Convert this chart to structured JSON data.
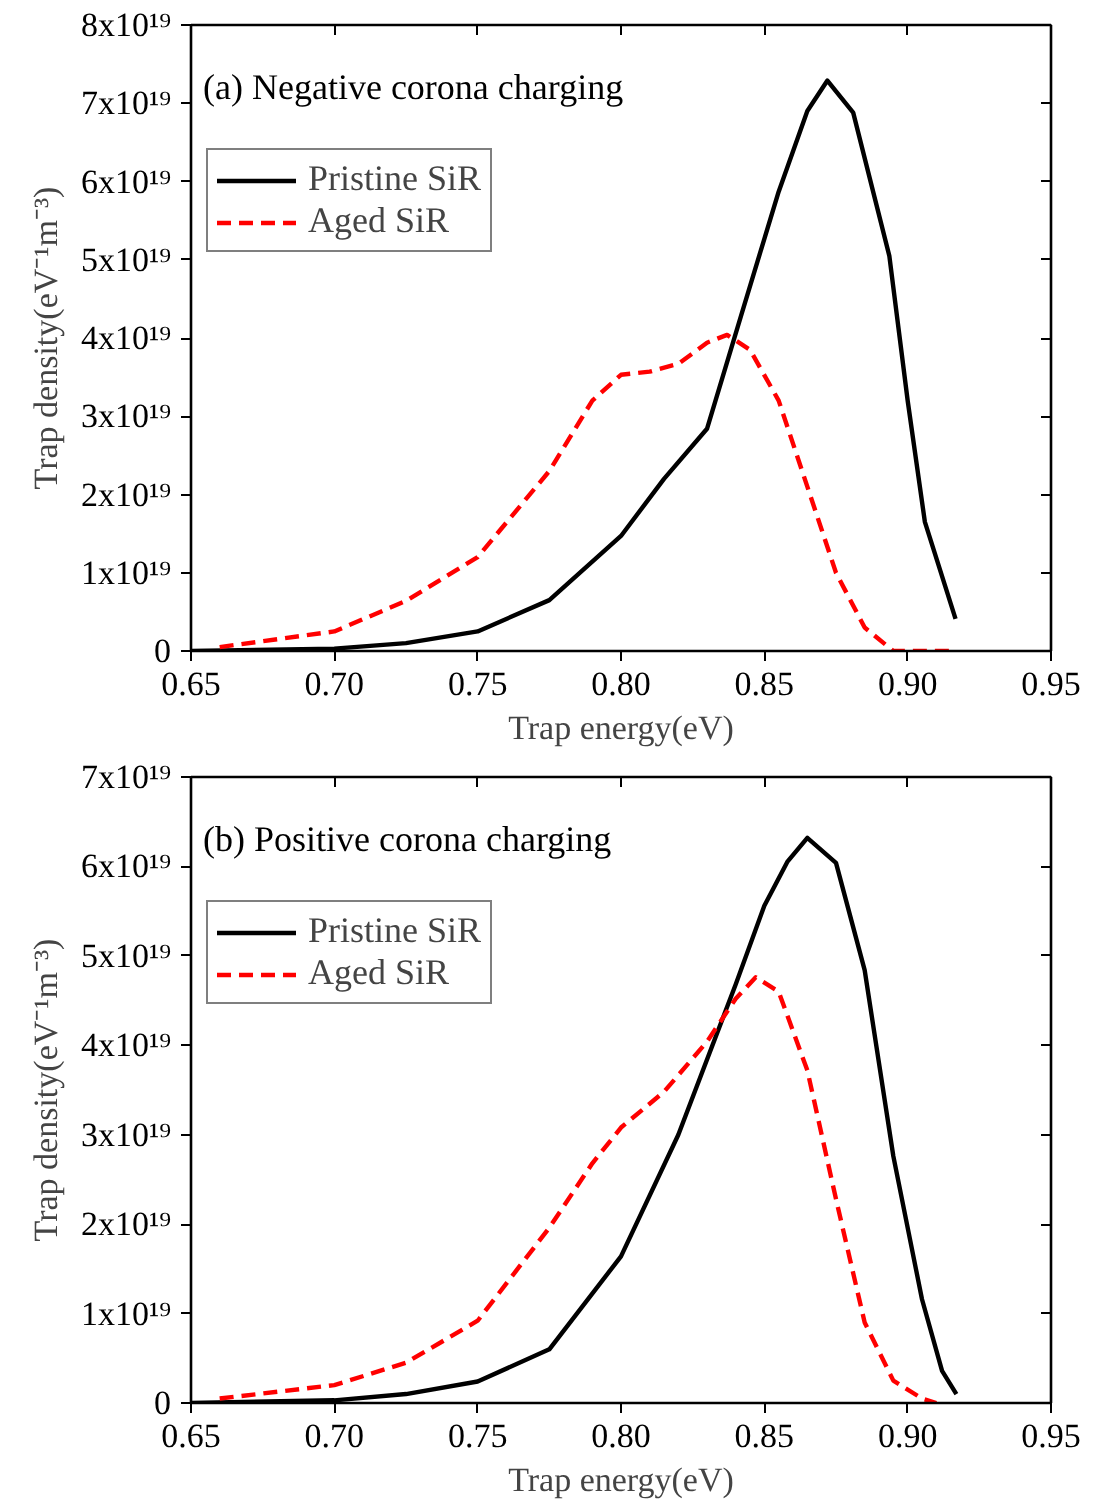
{
  "chart_data": [
    {
      "type": "line",
      "title": "(a) Negative corona charging",
      "xlabel": "Trap energy(eV)",
      "ylabel": "Trap density(eV⁻¹m⁻³)",
      "xlim": [
        0.65,
        0.95
      ],
      "xticks": [
        {
          "value": 0.65,
          "label": "0.65"
        },
        {
          "value": 0.7,
          "label": "0.70"
        },
        {
          "value": 0.75,
          "label": "0.75"
        },
        {
          "value": 0.8,
          "label": "0.80"
        },
        {
          "value": 0.85,
          "label": "0.85"
        },
        {
          "value": 0.9,
          "label": "0.90"
        },
        {
          "value": 0.95,
          "label": "0.95"
        }
      ],
      "ylim": [
        0,
        8e+19
      ],
      "yticks": [
        0,
        {
          "value": 1e+19,
          "label": "1x10¹⁹"
        },
        {
          "value": 2e+19,
          "label": "2x10¹⁹"
        },
        {
          "value": 3e+19,
          "label": "3x10¹⁹"
        },
        {
          "value": 4e+19,
          "label": "4x10¹⁹"
        },
        {
          "value": 5e+19,
          "label": "5x10¹⁹"
        },
        {
          "value": 6e+19,
          "label": "6x10¹⁹"
        },
        {
          "value": 7e+19,
          "label": "7x10¹⁹"
        },
        {
          "value": 8e+19,
          "label": "8x10¹⁹"
        }
      ],
      "grid": false,
      "legend": "top left",
      "series": [
        {
          "name": "Pristine SiR",
          "color": "#000000",
          "line_style": "solid",
          "x": [
            0.65,
            0.7,
            0.725,
            0.75,
            0.775,
            0.8,
            0.815,
            0.83,
            0.842,
            0.855,
            0.865,
            0.872,
            0.881,
            0.8936,
            0.9,
            0.906,
            0.9167
          ],
          "values": [
            0.0,
            3e+17,
            1e+18,
            2.5e+18,
            6.5e+18,
            1.47e+19,
            2.2e+19,
            2.84e+19,
            4.3e+19,
            5.87e+19,
            6.9e+19,
            7.29e+19,
            6.88e+19,
            5.05e+19,
            3.2e+19,
            1.65e+19,
            4.1e+18
          ]
        },
        {
          "name": "Aged SiR",
          "color": "#ff0000",
          "line_style": "dashed",
          "x": [
            0.66,
            0.7,
            0.725,
            0.75,
            0.775,
            0.79,
            0.8,
            0.81,
            0.82,
            0.83,
            0.837,
            0.845,
            0.855,
            0.865,
            0.875,
            0.885,
            0.895,
            0.9,
            0.915
          ],
          "values": [
            5e+17,
            2.5e+18,
            6.4e+18,
            1.2e+19,
            2.3e+19,
            3.2e+19,
            3.53e+19,
            3.57e+19,
            3.67e+19,
            3.94e+19,
            4.04e+19,
            3.85e+19,
            3.2e+19,
            2.1e+19,
            1e+19,
            3e+18,
            0.0,
            0.0,
            0.0
          ]
        }
      ]
    },
    {
      "type": "line",
      "title": "(b) Positive corona charging",
      "xlabel": "Trap energy(eV)",
      "ylabel": "Trap density(eV⁻¹m⁻³)",
      "xlim": [
        0.65,
        0.95
      ],
      "xticks": [
        {
          "value": 0.65,
          "label": "0.65"
        },
        {
          "value": 0.7,
          "label": "0.70"
        },
        {
          "value": 0.75,
          "label": "0.75"
        },
        {
          "value": 0.8,
          "label": "0.80"
        },
        {
          "value": 0.85,
          "label": "0.85"
        },
        {
          "value": 0.9,
          "label": "0.90"
        },
        {
          "value": 0.95,
          "label": "0.95"
        }
      ],
      "ylim": [
        0,
        7e+19
      ],
      "yticks": [
        0,
        {
          "value": 1e+19,
          "label": "1x10¹⁹"
        },
        {
          "value": 2e+19,
          "label": "2x10¹⁹"
        },
        {
          "value": 3e+19,
          "label": "3x10¹⁹"
        },
        {
          "value": 4e+19,
          "label": "4x10¹⁹"
        },
        {
          "value": 5e+19,
          "label": "5x10¹⁹"
        },
        {
          "value": 6e+19,
          "label": "6x10¹⁹"
        },
        {
          "value": 7e+19,
          "label": "7x10¹⁹"
        }
      ],
      "grid": false,
      "legend": "top left",
      "series": [
        {
          "name": "Pristine SiR",
          "color": "#000000",
          "line_style": "solid",
          "x": [
            0.65,
            0.7,
            0.725,
            0.75,
            0.775,
            0.8,
            0.82,
            0.84,
            0.85,
            0.858,
            0.865,
            0.875,
            0.885,
            0.895,
            0.905,
            0.912,
            0.917
          ],
          "values": [
            0.0,
            3e+17,
            1e+18,
            2.4e+18,
            6e+18,
            1.64e+19,
            3e+19,
            4.68e+19,
            5.56e+19,
            6.05e+19,
            6.32e+19,
            6.04e+19,
            4.84e+19,
            2.76e+19,
            1.16e+19,
            3.6e+18,
            1e+18
          ]
        },
        {
          "name": "Aged SiR",
          "color": "#ff0000",
          "line_style": "dashed",
          "x": [
            0.66,
            0.7,
            0.725,
            0.75,
            0.775,
            0.79,
            0.8,
            0.815,
            0.83,
            0.84,
            0.847,
            0.855,
            0.865,
            0.875,
            0.885,
            0.895,
            0.905,
            0.91
          ],
          "values": [
            5e+17,
            2e+18,
            4.5e+18,
            9.2e+18,
            1.96e+19,
            2.68e+19,
            3.08e+19,
            3.48e+19,
            4.04e+19,
            4.52e+19,
            4.76e+19,
            4.6e+19,
            3.72e+19,
            2.28e+19,
            9e+18,
            2.5e+18,
            5e+17,
            0.0
          ]
        }
      ]
    }
  ]
}
